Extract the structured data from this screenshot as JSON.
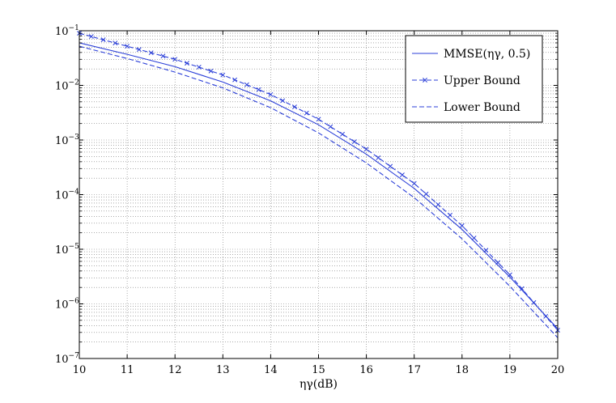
{
  "chart_data": {
    "type": "line",
    "title": "",
    "xlabel": "ηγ(dB)",
    "ylabel": "",
    "xlim": [
      10,
      20
    ],
    "ylim": [
      1e-07,
      0.1
    ],
    "yscale": "log",
    "grid": true,
    "legend_position": "top-right",
    "x_ticks": [
      10,
      11,
      12,
      13,
      14,
      15,
      16,
      17,
      18,
      19,
      20
    ],
    "x_tick_labels": [
      "10",
      "11",
      "12",
      "13",
      "14",
      "15",
      "16",
      "17",
      "18",
      "19",
      "20"
    ],
    "y_ticks": [
      1e-07,
      1e-06,
      1e-05,
      0.0001,
      0.001,
      0.01,
      0.1
    ],
    "y_tick_labels": [
      {
        "base": "10",
        "exp": "−7"
      },
      {
        "base": "10",
        "exp": "−6"
      },
      {
        "base": "10",
        "exp": "−5"
      },
      {
        "base": "10",
        "exp": "−4"
      },
      {
        "base": "10",
        "exp": "−3"
      },
      {
        "base": "10",
        "exp": "−2"
      },
      {
        "base": "10",
        "exp": "−1"
      }
    ],
    "x": [
      10,
      11,
      12,
      13,
      14,
      15,
      16,
      17,
      18,
      19,
      20
    ],
    "series": [
      {
        "name": "MMSE(ηγ, 0.5)",
        "style": "solid",
        "color": "#2b3fd8",
        "values": [
          0.06,
          0.037,
          0.022,
          0.0115,
          0.0052,
          0.0019,
          0.00055,
          0.00013,
          2.3e-05,
          3.1e-06,
          3.5e-07
        ]
      },
      {
        "name": "Upper Bound",
        "style": "dash-cross",
        "color": "#2b3fd8",
        "values": [
          0.09,
          0.052,
          0.03,
          0.0155,
          0.0068,
          0.0024,
          0.00068,
          0.00016,
          2.7e-05,
          3.4e-06,
          3.3e-07
        ]
      },
      {
        "name": "Lower Bound",
        "style": "dashed",
        "color": "#2b3fd8",
        "values": [
          0.052,
          0.031,
          0.0175,
          0.009,
          0.0039,
          0.00135,
          0.00038,
          8.8e-05,
          1.55e-05,
          2.1e-06,
          2.4e-07
        ]
      }
    ]
  }
}
